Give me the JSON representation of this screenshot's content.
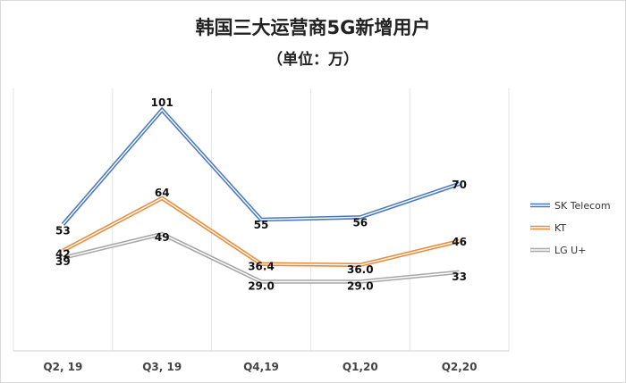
{
  "chart_data": {
    "type": "line",
    "title": "韩国三大运营商5G新增用户",
    "subtitle": "（单位：万）",
    "categories": [
      "Q2, 19",
      "Q3, 19",
      "Q4,19",
      "Q1,20",
      "Q2,20"
    ],
    "ylim": [
      0,
      110
    ],
    "grid": "vertical",
    "legend": "right",
    "series": [
      {
        "name": "SK Telecom",
        "values": [
          53,
          101,
          55,
          56,
          70
        ],
        "labels": [
          "53",
          "101",
          "55",
          "56",
          "70"
        ],
        "color": "#4a78c0"
      },
      {
        "name": "KT",
        "values": [
          42,
          64,
          36.4,
          36.0,
          46
        ],
        "labels": [
          "42",
          "64",
          "36.4",
          "36.0",
          "46"
        ],
        "color": "#ec8a3c"
      },
      {
        "name": "LG U+",
        "values": [
          39,
          49,
          29.0,
          29.0,
          33
        ],
        "labels": [
          "39",
          "49",
          "29.0",
          "29.0",
          "33"
        ],
        "color": "#a6a6a6"
      }
    ]
  }
}
